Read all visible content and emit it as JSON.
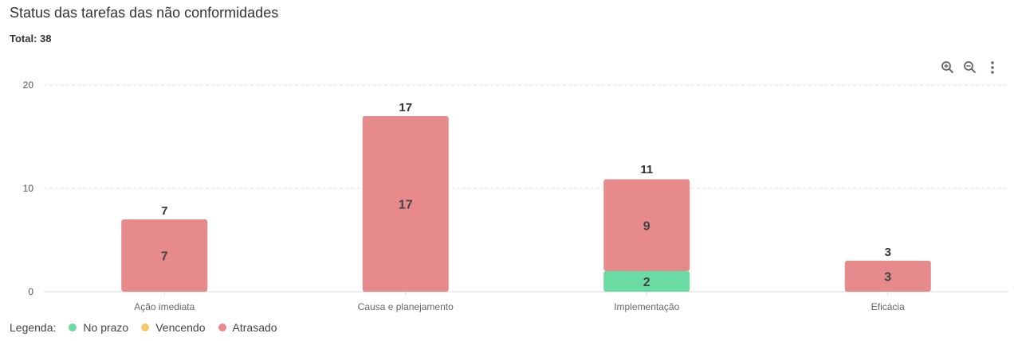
{
  "header": {
    "title": "Status das tarefas das não conformidades",
    "total": "Total: 38"
  },
  "toolbar": {
    "icons": [
      "zoom-in-icon",
      "zoom-out-icon",
      "more-vert-icon"
    ]
  },
  "legend": {
    "title": "Legenda:",
    "items": [
      {
        "label": "No prazo",
        "color": "#6bdba4"
      },
      {
        "label": "Vencendo",
        "color": "#f5c96a"
      },
      {
        "label": "Atrasado",
        "color": "#e68a8c"
      }
    ]
  },
  "chart_data": {
    "type": "bar",
    "stacked": true,
    "title": "Status das tarefas das não conformidades",
    "categories": [
      "Ação imediata",
      "Causa e planejamento",
      "Implementação",
      "Eficácia"
    ],
    "series": [
      {
        "name": "No prazo",
        "color": "#6bdba4",
        "values": [
          0,
          0,
          2,
          0
        ]
      },
      {
        "name": "Vencendo",
        "color": "#f5c96a",
        "values": [
          0,
          0,
          0,
          0
        ]
      },
      {
        "name": "Atrasado",
        "color": "#e68a8c",
        "values": [
          7,
          17,
          9,
          3
        ]
      }
    ],
    "totals": [
      7,
      17,
      11,
      3
    ],
    "yticks": [
      0,
      10,
      20
    ],
    "ylim": [
      0,
      20
    ],
    "grid": true,
    "legend_position": "bottom-left"
  }
}
